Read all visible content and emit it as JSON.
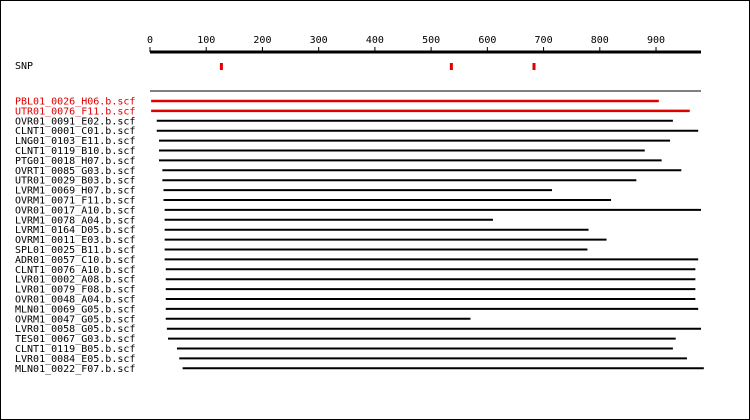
{
  "ruler": {
    "ticks": [
      {
        "value": 0,
        "label": "0"
      },
      {
        "value": 100,
        "label": "100"
      },
      {
        "value": 200,
        "label": "200"
      },
      {
        "value": 300,
        "label": "300"
      },
      {
        "value": 400,
        "label": "400"
      },
      {
        "value": 500,
        "label": "500"
      },
      {
        "value": 600,
        "label": "600"
      },
      {
        "value": 700,
        "label": "700"
      },
      {
        "value": 800,
        "label": "800"
      },
      {
        "value": 900,
        "label": "900"
      }
    ],
    "min": 0,
    "max": 980
  },
  "snp": {
    "label": "SNP",
    "color": "#e00000",
    "positions": [
      127,
      536,
      683
    ]
  },
  "colors": {
    "highlight": "#e00000",
    "normal": "#000000"
  },
  "reads": [
    {
      "name": "PBL01_0026_H06.b.scf",
      "start": 2,
      "end": 905,
      "highlight": true
    },
    {
      "name": "UTR01_0076_F11.b.scf",
      "start": 2,
      "end": 960,
      "highlight": true
    },
    {
      "name": "OVR01_0091_E02.b.scf",
      "start": 12,
      "end": 930,
      "highlight": false
    },
    {
      "name": "CLNT1_0001_C01.b.scf",
      "start": 12,
      "end": 975,
      "highlight": false
    },
    {
      "name": "LNG01_0103_E11.b.scf",
      "start": 16,
      "end": 925,
      "highlight": false
    },
    {
      "name": "CLNT1_0119_B10.b.scf",
      "start": 16,
      "end": 880,
      "highlight": false
    },
    {
      "name": "PTG01_0018_H07.b.scf",
      "start": 16,
      "end": 910,
      "highlight": false
    },
    {
      "name": "OVRT1_0085_G03.b.scf",
      "start": 22,
      "end": 945,
      "highlight": false
    },
    {
      "name": "UTR01_0029_B03.b.scf",
      "start": 22,
      "end": 865,
      "highlight": false
    },
    {
      "name": "LVRM1_0069_H07.b.scf",
      "start": 24,
      "end": 715,
      "highlight": false
    },
    {
      "name": "OVRM1_0071_F11.b.scf",
      "start": 24,
      "end": 820,
      "highlight": false
    },
    {
      "name": "OVR01_0017_A10.b.scf",
      "start": 26,
      "end": 980,
      "highlight": false
    },
    {
      "name": "LVRM1_0078_A04.b.scf",
      "start": 26,
      "end": 610,
      "highlight": false
    },
    {
      "name": "LVRM1_0164_D05.b.scf",
      "start": 26,
      "end": 780,
      "highlight": false
    },
    {
      "name": "OVRM1_0011_E03.b.scf",
      "start": 26,
      "end": 812,
      "highlight": false
    },
    {
      "name": "SPL01_0025_B11.b.scf",
      "start": 26,
      "end": 778,
      "highlight": false
    },
    {
      "name": "ADR01_0057_C10.b.scf",
      "start": 26,
      "end": 975,
      "highlight": false
    },
    {
      "name": "CLNT1_0076_A10.b.scf",
      "start": 28,
      "end": 970,
      "highlight": false
    },
    {
      "name": "LVR01_0002_A08.b.scf",
      "start": 28,
      "end": 970,
      "highlight": false
    },
    {
      "name": "LVR01_0079_F08.b.scf",
      "start": 28,
      "end": 970,
      "highlight": false
    },
    {
      "name": "OVR01_0048_A04.b.scf",
      "start": 28,
      "end": 970,
      "highlight": false
    },
    {
      "name": "MLN01_0069_G05.b.scf",
      "start": 28,
      "end": 975,
      "highlight": false
    },
    {
      "name": "OVRM1_0047_G05.b.scf",
      "start": 28,
      "end": 570,
      "highlight": false
    },
    {
      "name": "LVR01_0058_G05.b.scf",
      "start": 30,
      "end": 980,
      "highlight": false
    },
    {
      "name": "TES01_0067_G03.b.scf",
      "start": 32,
      "end": 935,
      "highlight": false
    },
    {
      "name": "CLNT1_0119_B05.b.scf",
      "start": 48,
      "end": 930,
      "highlight": false
    },
    {
      "name": "LVR01_0084_E05.b.scf",
      "start": 52,
      "end": 955,
      "highlight": false
    },
    {
      "name": "MLN01_0022_F07.b.scf",
      "start": 58,
      "end": 985,
      "highlight": false
    }
  ]
}
